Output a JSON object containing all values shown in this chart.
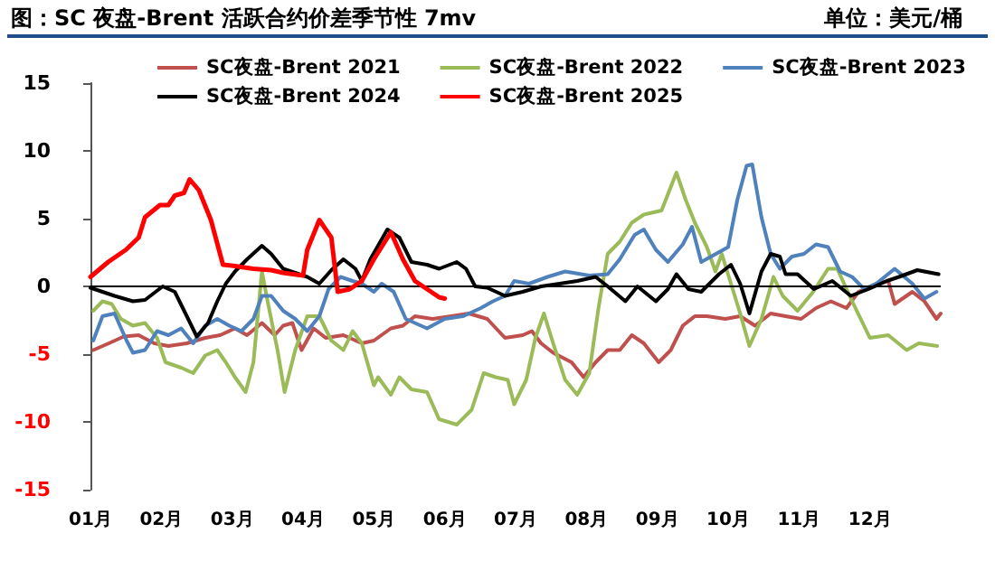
{
  "chart_data": {
    "type": "line",
    "title": "图：SC 夜盘-Brent 活跃合约价差季节性 7mv",
    "ylabel": "单位：美元/桶",
    "xlim": [
      1,
      13
    ],
    "xticks": [
      {
        "value": 1,
        "label": "01月"
      },
      {
        "value": 2,
        "label": "02月"
      },
      {
        "value": 3,
        "label": "03月"
      },
      {
        "value": 4,
        "label": "04月"
      },
      {
        "value": 5,
        "label": "05月"
      },
      {
        "value": 6,
        "label": "06月"
      },
      {
        "value": 7,
        "label": "07月"
      },
      {
        "value": 8,
        "label": "08月"
      },
      {
        "value": 9,
        "label": "09月"
      },
      {
        "value": 10,
        "label": "10月"
      },
      {
        "value": 11,
        "label": "11月"
      },
      {
        "value": 12,
        "label": "12月"
      }
    ],
    "ylim": [
      -15,
      15
    ],
    "yticks": [
      -15,
      -10,
      -5,
      0,
      5,
      10,
      15
    ],
    "grid": false,
    "legend": "top",
    "marker": "none",
    "line_style": "solid",
    "ref_lines": [
      {
        "axis": "y",
        "value": 0,
        "color": "#000000"
      }
    ],
    "series": [
      {
        "name": "SC夜盘-Brent 2021",
        "color": "#c0504d",
        "x": [
          1.04,
          1.26,
          1.47,
          1.68,
          1.9,
          2.1,
          2.36,
          2.62,
          2.83,
          3.04,
          3.21,
          3.42,
          3.6,
          3.72,
          3.85,
          3.98,
          4.15,
          4.32,
          4.57,
          4.83,
          5.0,
          5.24,
          5.41,
          5.58,
          5.83,
          6.09,
          6.34,
          6.6,
          6.85,
          7.1,
          7.23,
          7.36,
          7.53,
          7.79,
          7.96,
          8.13,
          8.3,
          8.47,
          8.64,
          8.81,
          9.02,
          9.19,
          9.36,
          9.53,
          9.7,
          9.96,
          10.17,
          10.38,
          10.6,
          10.81,
          11.03,
          11.24,
          11.45,
          11.67,
          11.84,
          12.09,
          12.26,
          12.35,
          12.6,
          12.77,
          12.94,
          13.0
        ],
        "values": [
          -4.7,
          -4.2,
          -3.7,
          -3.6,
          -4.2,
          -4.4,
          -4.2,
          -3.8,
          -3.6,
          -3.1,
          -3.6,
          -2.7,
          -3.6,
          -2.9,
          -2.7,
          -4.7,
          -3.1,
          -3.8,
          -3.6,
          -4.2,
          -4.0,
          -3.1,
          -2.9,
          -2.2,
          -2.4,
          -2.2,
          -2.0,
          -2.4,
          -3.8,
          -3.6,
          -3.3,
          -4.2,
          -4.9,
          -5.6,
          -6.7,
          -5.6,
          -4.7,
          -4.7,
          -3.6,
          -4.2,
          -5.6,
          -4.7,
          -2.9,
          -2.2,
          -2.2,
          -2.4,
          -2.2,
          -2.9,
          -2.0,
          -2.2,
          -2.4,
          -1.6,
          -1.1,
          -1.6,
          -0.4,
          0.2,
          0.4,
          -1.3,
          -0.4,
          -1.1,
          -2.4,
          -2.0
        ]
      },
      {
        "name": "SC夜盘-Brent 2022",
        "color": "#9bbb59",
        "x": [
          1.04,
          1.17,
          1.3,
          1.43,
          1.6,
          1.77,
          1.94,
          2.06,
          2.28,
          2.45,
          2.62,
          2.79,
          2.91,
          3.04,
          3.19,
          3.3,
          3.42,
          3.5,
          3.64,
          3.74,
          3.89,
          4.06,
          4.23,
          4.4,
          4.57,
          4.7,
          4.83,
          5.0,
          5.06,
          5.24,
          5.36,
          5.53,
          5.75,
          5.92,
          6.17,
          6.38,
          6.55,
          6.72,
          6.89,
          6.98,
          7.15,
          7.28,
          7.4,
          7.53,
          7.7,
          7.87,
          8.04,
          8.17,
          8.3,
          8.47,
          8.64,
          8.81,
          9.06,
          9.27,
          9.4,
          9.53,
          9.7,
          9.82,
          9.91,
          10.04,
          10.17,
          10.3,
          10.47,
          10.64,
          10.77,
          10.98,
          11.2,
          11.41,
          11.54,
          11.75,
          12.0,
          12.26,
          12.52,
          12.69,
          12.95
        ],
        "values": [
          -1.8,
          -1.1,
          -1.3,
          -2.4,
          -2.9,
          -2.7,
          -3.8,
          -5.6,
          -6.0,
          -6.4,
          -5.1,
          -4.7,
          -5.6,
          -6.7,
          -7.8,
          -5.6,
          1.1,
          -1.1,
          -4.7,
          -7.8,
          -4.7,
          -2.2,
          -2.2,
          -4.0,
          -4.7,
          -3.3,
          -4.2,
          -7.3,
          -6.7,
          -8.0,
          -6.7,
          -7.6,
          -7.8,
          -9.8,
          -10.2,
          -9.1,
          -6.4,
          -6.7,
          -6.9,
          -8.7,
          -6.9,
          -3.8,
          -2.0,
          -4.2,
          -6.9,
          -8.0,
          -6.4,
          -1.6,
          2.4,
          3.3,
          4.7,
          5.3,
          5.6,
          8.4,
          6.4,
          4.7,
          2.9,
          1.1,
          2.4,
          0.2,
          -2.0,
          -4.4,
          -2.4,
          0.7,
          -0.7,
          -1.8,
          -0.4,
          1.3,
          1.3,
          -1.1,
          -3.8,
          -3.6,
          -4.7,
          -4.2,
          -4.4
        ]
      },
      {
        "name": "SC夜盘-Brent 2023",
        "color": "#4f81bd",
        "x": [
          1.04,
          1.17,
          1.34,
          1.51,
          1.6,
          1.77,
          1.94,
          2.1,
          2.28,
          2.45,
          2.62,
          2.79,
          2.96,
          3.13,
          3.3,
          3.42,
          3.55,
          3.72,
          3.89,
          4.06,
          4.23,
          4.36,
          4.53,
          4.7,
          4.83,
          5.0,
          5.11,
          5.28,
          5.45,
          5.75,
          6.0,
          6.26,
          6.51,
          6.68,
          6.85,
          6.98,
          7.19,
          7.45,
          7.7,
          8.04,
          8.3,
          8.47,
          8.68,
          8.81,
          8.98,
          9.15,
          9.36,
          9.49,
          9.62,
          10.0,
          10.13,
          10.26,
          10.34,
          10.47,
          10.6,
          10.73,
          10.9,
          11.07,
          11.24,
          11.41,
          11.58,
          11.75,
          11.92,
          12.09,
          12.35,
          12.6,
          12.77,
          12.94
        ],
        "values": [
          -4.0,
          -2.2,
          -2.0,
          -4.0,
          -4.9,
          -4.7,
          -3.3,
          -3.6,
          -3.1,
          -4.2,
          -2.9,
          -2.4,
          -2.9,
          -3.3,
          -2.4,
          -0.7,
          -0.7,
          -1.8,
          -2.4,
          -3.3,
          -2.2,
          -0.2,
          0.7,
          0.4,
          0.2,
          -0.4,
          0.2,
          -0.4,
          -2.4,
          -3.1,
          -2.4,
          -2.2,
          -1.6,
          -1.1,
          -0.7,
          0.4,
          0.2,
          0.7,
          1.1,
          0.8,
          0.9,
          2.0,
          3.8,
          4.2,
          2.7,
          1.8,
          3.1,
          4.4,
          1.8,
          2.9,
          6.4,
          8.9,
          9.0,
          5.1,
          2.4,
          1.3,
          2.2,
          2.4,
          3.1,
          2.9,
          1.1,
          0.7,
          -0.2,
          0.2,
          1.3,
          0.2,
          -0.9,
          -0.4
        ]
      },
      {
        "name": "SC夜盘-Brent 2024",
        "color": "#000000",
        "x": [
          1.0,
          1.17,
          1.34,
          1.6,
          1.77,
          2.02,
          2.19,
          2.36,
          2.5,
          2.66,
          2.79,
          2.91,
          3.04,
          3.21,
          3.42,
          3.55,
          3.72,
          3.89,
          4.06,
          4.23,
          4.4,
          4.57,
          4.74,
          4.83,
          4.95,
          5.19,
          5.36,
          5.53,
          5.75,
          5.92,
          6.17,
          6.3,
          6.43,
          6.6,
          6.85,
          7.1,
          7.36,
          7.62,
          7.87,
          8.13,
          8.3,
          8.55,
          8.72,
          8.98,
          9.15,
          9.27,
          9.44,
          9.62,
          9.87,
          10.04,
          10.17,
          10.3,
          10.47,
          10.6,
          10.73,
          10.81,
          10.98,
          11.21,
          11.47,
          11.73,
          11.98,
          12.24,
          12.41,
          12.67,
          12.97
        ],
        "values": [
          -0.1,
          -0.4,
          -0.7,
          -1.1,
          -1.0,
          0.0,
          -0.4,
          -2.2,
          -3.7,
          -2.7,
          -1.1,
          0.2,
          1.1,
          2.0,
          3.0,
          2.4,
          1.3,
          1.0,
          0.7,
          0.2,
          1.2,
          2.0,
          1.3,
          0.4,
          2.0,
          4.2,
          3.6,
          1.8,
          1.6,
          1.3,
          1.8,
          1.3,
          0.0,
          -0.1,
          -0.7,
          -0.4,
          0.0,
          0.2,
          0.4,
          0.7,
          0.0,
          -1.1,
          0.0,
          -1.1,
          -0.2,
          0.9,
          -0.2,
          -0.4,
          0.9,
          1.6,
          0.2,
          -2.0,
          1.1,
          2.4,
          2.2,
          0.9,
          0.9,
          -0.2,
          0.4,
          -0.7,
          -0.2,
          0.4,
          0.7,
          1.2,
          0.9
        ]
      },
      {
        "name": "SC夜盘-Brent 2025",
        "color": "#ff0000",
        "x": [
          1.0,
          1.25,
          1.5,
          1.68,
          1.77,
          1.98,
          2.1,
          2.19,
          2.32,
          2.4,
          2.53,
          2.7,
          2.87,
          3.04,
          3.3,
          3.55,
          3.72,
          4.0,
          4.06,
          4.23,
          4.4,
          4.49,
          4.66,
          4.83,
          5.0,
          5.24,
          5.41,
          5.58,
          5.75,
          5.92,
          6.0
        ],
        "values": [
          0.7,
          1.8,
          2.7,
          3.6,
          5.1,
          6.0,
          6.0,
          6.7,
          6.9,
          7.9,
          7.1,
          4.9,
          1.6,
          1.5,
          1.3,
          1.2,
          1.0,
          0.8,
          2.7,
          4.9,
          3.6,
          -0.4,
          -0.2,
          0.4,
          2.0,
          4.0,
          2.0,
          0.4,
          -0.2,
          -0.8,
          -0.9
        ]
      }
    ]
  }
}
